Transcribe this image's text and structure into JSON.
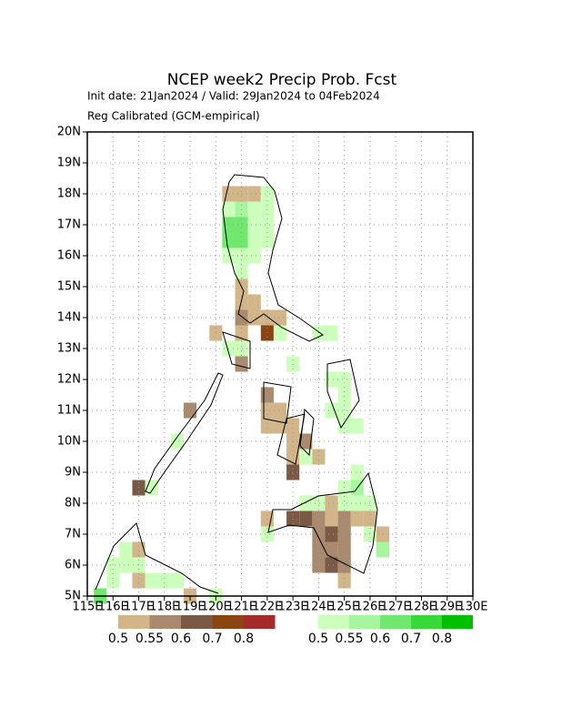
{
  "chart_data": {
    "type": "map",
    "title": "NCEP week2 Precip Prob. Fcst",
    "subtitle": "Init date: 21Jan2024 / Valid: 29Jan2024 to 04Feb2024",
    "note": "Reg Calibrated (GCM-empirical)",
    "xlim": [
      115,
      130
    ],
    "ylim": [
      5,
      20
    ],
    "xticks": [
      {
        "value": 115,
        "label": "115E"
      },
      {
        "value": 116,
        "label": "116E"
      },
      {
        "value": 117,
        "label": "117E"
      },
      {
        "value": 118,
        "label": "118E"
      },
      {
        "value": 119,
        "label": "119E"
      },
      {
        "value": 120,
        "label": "120E"
      },
      {
        "value": 121,
        "label": "121E"
      },
      {
        "value": 122,
        "label": "122E"
      },
      {
        "value": 123,
        "label": "123E"
      },
      {
        "value": 124,
        "label": "124E"
      },
      {
        "value": 125,
        "label": "125E"
      },
      {
        "value": 126,
        "label": "126E"
      },
      {
        "value": 127,
        "label": "127E"
      },
      {
        "value": 128,
        "label": "128E"
      },
      {
        "value": 129,
        "label": "129E"
      },
      {
        "value": 130,
        "label": "130E"
      }
    ],
    "yticks": [
      {
        "value": 5,
        "label": "5N"
      },
      {
        "value": 6,
        "label": "6N"
      },
      {
        "value": 7,
        "label": "7N"
      },
      {
        "value": 8,
        "label": "8N"
      },
      {
        "value": 9,
        "label": "9N"
      },
      {
        "value": 10,
        "label": "10N"
      },
      {
        "value": 11,
        "label": "11N"
      },
      {
        "value": 12,
        "label": "12N"
      },
      {
        "value": 13,
        "label": "13N"
      },
      {
        "value": 14,
        "label": "14N"
      },
      {
        "value": 15,
        "label": "15N"
      },
      {
        "value": 16,
        "label": "16N"
      },
      {
        "value": 17,
        "label": "17N"
      },
      {
        "value": 18,
        "label": "18N"
      },
      {
        "value": 19,
        "label": "19N"
      },
      {
        "value": 20,
        "label": "20N"
      }
    ],
    "grid": true,
    "levels": [
      0.5,
      0.55,
      0.6,
      0.7,
      0.8
    ],
    "dry_colors": [
      "#d2b589",
      "#a98a6e",
      "#7a5a44",
      "#8b4513",
      "#a52a2a"
    ],
    "wet_colors": [
      "#ccffbb",
      "#a8f5a0",
      "#70e870",
      "#38d838",
      "#00c000"
    ],
    "dry_cells": [
      [
        120.5,
        18,
        0.52
      ],
      [
        121,
        18,
        0.52
      ],
      [
        121.5,
        18,
        0.52
      ],
      [
        121,
        15,
        0.52
      ],
      [
        121,
        14.5,
        0.52
      ],
      [
        121.5,
        14.5,
        0.52
      ],
      [
        121,
        14,
        0.57
      ],
      [
        121.5,
        14,
        0.52
      ],
      [
        122,
        14,
        0.52
      ],
      [
        122.5,
        14,
        0.52
      ],
      [
        122,
        13.5,
        0.75
      ],
      [
        120,
        13.5,
        0.52
      ],
      [
        121,
        13.5,
        0.52
      ],
      [
        121,
        12.5,
        0.57
      ],
      [
        122,
        11.5,
        0.57
      ],
      [
        122,
        11,
        0.52
      ],
      [
        122.5,
        11,
        0.52
      ],
      [
        122,
        10.5,
        0.52
      ],
      [
        122.5,
        10.5,
        0.52
      ],
      [
        123,
        10.5,
        0.52
      ],
      [
        123,
        10,
        0.52
      ],
      [
        123,
        9.5,
        0.52
      ],
      [
        123.5,
        10,
        0.57
      ],
      [
        123,
        9,
        0.62
      ],
      [
        124,
        9.5,
        0.52
      ],
      [
        124.5,
        8,
        0.52
      ],
      [
        124,
        7.5,
        0.57
      ],
      [
        124.5,
        7.5,
        0.52
      ],
      [
        125,
        7.5,
        0.57
      ],
      [
        125.5,
        7.5,
        0.52
      ],
      [
        126,
        7.5,
        0.52
      ],
      [
        123,
        7.5,
        0.65
      ],
      [
        123.5,
        7.5,
        0.65
      ],
      [
        122,
        7.5,
        0.52
      ],
      [
        124,
        7,
        0.57
      ],
      [
        124.5,
        7,
        0.65
      ],
      [
        125,
        7,
        0.57
      ],
      [
        126.5,
        7,
        0.52
      ],
      [
        124,
        6.5,
        0.57
      ],
      [
        124.5,
        6.5,
        0.57
      ],
      [
        125,
        6.5,
        0.57
      ],
      [
        124,
        6,
        0.57
      ],
      [
        124.5,
        6,
        0.65
      ],
      [
        125,
        6,
        0.57
      ],
      [
        125,
        5.5,
        0.52
      ],
      [
        119,
        11,
        0.57
      ],
      [
        117,
        8.5,
        0.65
      ],
      [
        117,
        6.5,
        0.52
      ],
      [
        117,
        5.5,
        0.52
      ],
      [
        119,
        5,
        0.52
      ]
    ],
    "wet_cells": [
      [
        122,
        18,
        0.52
      ],
      [
        120.5,
        17.5,
        0.52
      ],
      [
        121,
        17.5,
        0.57
      ],
      [
        121.5,
        17.5,
        0.52
      ],
      [
        122,
        17.5,
        0.52
      ],
      [
        120.5,
        17,
        0.62
      ],
      [
        121,
        17,
        0.62
      ],
      [
        121.5,
        17,
        0.52
      ],
      [
        122,
        17,
        0.52
      ],
      [
        120.5,
        16.5,
        0.62
      ],
      [
        121,
        16.5,
        0.62
      ],
      [
        121.5,
        16.5,
        0.52
      ],
      [
        122,
        16.5,
        0.52
      ],
      [
        120.5,
        16,
        0.52
      ],
      [
        121,
        16,
        0.52
      ],
      [
        121.5,
        16,
        0.52
      ],
      [
        121,
        15.5,
        0.52
      ],
      [
        122.5,
        13.5,
        0.52
      ],
      [
        120.5,
        13,
        0.52
      ],
      [
        121,
        13,
        0.52
      ],
      [
        124,
        13.5,
        0.52
      ],
      [
        124.5,
        13.5,
        0.52
      ],
      [
        123,
        12.5,
        0.52
      ],
      [
        124.5,
        12,
        0.52
      ],
      [
        125,
        12,
        0.52
      ],
      [
        125,
        11.5,
        0.52
      ],
      [
        124.5,
        11,
        0.52
      ],
      [
        125,
        11,
        0.52
      ],
      [
        125,
        10.5,
        0.52
      ],
      [
        125.5,
        10.5,
        0.52
      ],
      [
        123.5,
        9.5,
        0.52
      ],
      [
        125.5,
        9,
        0.52
      ],
      [
        125.5,
        8.5,
        0.57
      ],
      [
        125,
        8.5,
        0.52
      ],
      [
        124,
        8,
        0.52
      ],
      [
        125,
        8,
        0.52
      ],
      [
        125.5,
        8,
        0.52
      ],
      [
        126,
        8,
        0.52
      ],
      [
        123.5,
        8,
        0.52
      ],
      [
        122,
        7,
        0.52
      ],
      [
        126,
        7,
        0.52
      ],
      [
        126.5,
        6.5,
        0.57
      ],
      [
        118.5,
        10,
        0.52
      ],
      [
        117.5,
        8.5,
        0.52
      ],
      [
        116.5,
        6.5,
        0.52
      ],
      [
        116.5,
        6,
        0.52
      ],
      [
        117,
        6,
        0.52
      ],
      [
        116,
        6,
        0.52
      ],
      [
        117.5,
        5.5,
        0.52
      ],
      [
        116,
        5.5,
        0.52
      ],
      [
        118,
        5.5,
        0.52
      ],
      [
        118.5,
        5.5,
        0.52
      ],
      [
        115.5,
        5,
        0.62
      ],
      [
        120,
        5,
        0.52
      ]
    ]
  }
}
